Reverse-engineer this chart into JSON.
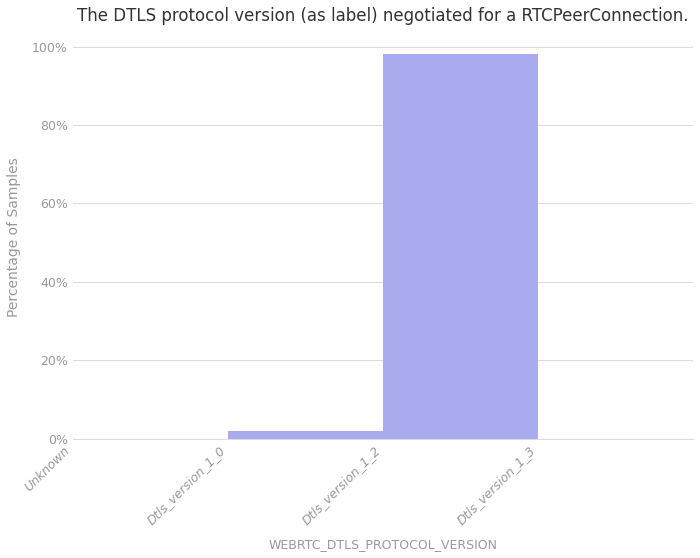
{
  "title": "The DTLS protocol version (as label) negotiated for a RTCPeerConnection.",
  "xlabel": "WEBRTC_DTLS_PROTOCOL_VERSION",
  "ylabel": "Percentage of Samples",
  "categories": [
    "Unknown",
    "Dtls_version_1_0",
    "Dtls_version_1_2",
    "Dtls_version_1_3"
  ],
  "values": [
    0.0,
    2.0,
    98.0,
    0.0
  ],
  "bar_color": "#aaaaee",
  "ylim": [
    0,
    103
  ],
  "yticks": [
    0,
    20,
    40,
    60,
    80,
    100
  ],
  "ytick_labels": [
    "0%",
    "20%",
    "40%",
    "60%",
    "80%",
    "100%"
  ],
  "background_color": "#ffffff",
  "grid_color": "#dddddd",
  "title_fontsize": 12,
  "label_fontsize": 10,
  "tick_fontsize": 9,
  "xlabel_fontsize": 9,
  "tick_color": "#999999"
}
